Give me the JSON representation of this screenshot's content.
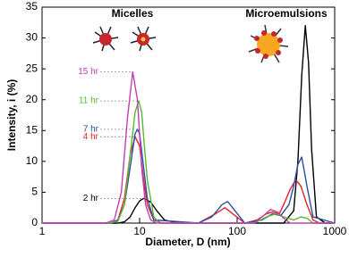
{
  "chart_data": {
    "type": "line",
    "x_label": "Diameter, D (nm)",
    "y_label": "Intensity, i (%)",
    "annotations": [
      "Micelles",
      "Microemulsions"
    ],
    "xscale": "log",
    "xlim": [
      1,
      1000
    ],
    "xticks": [
      1,
      10,
      100,
      1000
    ],
    "ylim": [
      0,
      35
    ],
    "yticks": [
      0,
      5,
      10,
      15,
      20,
      25,
      30,
      35
    ],
    "series": [
      {
        "name": "2 hr",
        "color": "#000000",
        "x": [
          1,
          6,
          7,
          8,
          9,
          10,
          11,
          13,
          15,
          18,
          25,
          300,
          380,
          420,
          460,
          500,
          540,
          580,
          650,
          800,
          1000
        ],
        "values": [
          0,
          0,
          0.2,
          1,
          2.5,
          3.6,
          4,
          3.4,
          2,
          0.5,
          0,
          0,
          2,
          10,
          24,
          32,
          26,
          12,
          1,
          0,
          0
        ]
      },
      {
        "name": "4 hr",
        "color": "#e8212a",
        "x": [
          1,
          5,
          6,
          7,
          8,
          9,
          10,
          11,
          12,
          14,
          17,
          40,
          60,
          75,
          90,
          120,
          160,
          200,
          230,
          270,
          300,
          350,
          400,
          450,
          520,
          600,
          700,
          1000
        ],
        "values": [
          0,
          0,
          0.5,
          4,
          11,
          14,
          12.5,
          7,
          3,
          0.5,
          0,
          0,
          1.5,
          2.5,
          1.5,
          0,
          0.5,
          1.5,
          1.8,
          1.5,
          3,
          5.5,
          7,
          6,
          3,
          0.5,
          0,
          0
        ]
      },
      {
        "name": "7 hr",
        "color": "#2b4fa3",
        "x": [
          1,
          5,
          6,
          7,
          8,
          9,
          9.5,
          10,
          11,
          12,
          14,
          40,
          55,
          70,
          80,
          95,
          120,
          180,
          230,
          280,
          340,
          380,
          420,
          460,
          520,
          600,
          1000
        ],
        "values": [
          0,
          0,
          0.5,
          3,
          9,
          14.5,
          15.2,
          14.5,
          9,
          4,
          0.5,
          0,
          1,
          3,
          3.5,
          2,
          0,
          0.5,
          1.5,
          1.2,
          3,
          6,
          9.5,
          10.7,
          6,
          1,
          0
        ]
      },
      {
        "name": "11 hr",
        "color": "#5cb531",
        "x": [
          1,
          5,
          6,
          7,
          8,
          9,
          9.8,
          10.5,
          11,
          12,
          14,
          16,
          150,
          200,
          250,
          300,
          380,
          450,
          520,
          600,
          1000
        ],
        "values": [
          0,
          0,
          0.3,
          3,
          11,
          18,
          19.8,
          18,
          14,
          7,
          1,
          0,
          0,
          1,
          1.5,
          1,
          0.5,
          1,
          0.8,
          0,
          0
        ]
      },
      {
        "name": "15 hr",
        "color": "#c13fb4",
        "x": [
          1,
          4.5,
          5.5,
          6.5,
          7.5,
          8.5,
          9.5,
          10.5,
          11.5,
          13,
          15,
          150,
          180,
          220,
          260,
          300,
          350,
          1000
        ],
        "values": [
          0,
          0,
          0.5,
          5,
          17,
          24.5,
          20,
          9,
          3,
          0.5,
          0,
          0,
          1,
          2.2,
          1.8,
          0.8,
          0,
          0
        ]
      }
    ]
  }
}
